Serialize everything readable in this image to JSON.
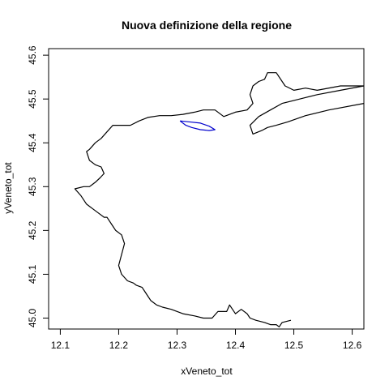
{
  "chart_data": {
    "type": "line",
    "title": "Nuova definizione della regione",
    "xlabel": "xVeneto_tot",
    "ylabel": "yVeneto_tot",
    "xlim": [
      12.08,
      12.62
    ],
    "ylim": [
      44.975,
      45.615
    ],
    "x_ticks": [
      "12.1",
      "12.2",
      "12.3",
      "12.4",
      "12.5",
      "12.6"
    ],
    "y_ticks": [
      "45.0",
      "45.1",
      "45.2",
      "45.3",
      "45.4",
      "45.5",
      "45.6"
    ],
    "grid": false,
    "series": [
      {
        "color": "#000000",
        "x": [
          12.62,
          12.58,
          12.54,
          12.52,
          12.5,
          12.485,
          12.47,
          12.455,
          12.45,
          12.44,
          12.43,
          12.425,
          12.43,
          12.42,
          12.4,
          12.38,
          12.365,
          12.345,
          12.33,
          12.31,
          12.29,
          12.27,
          12.25,
          12.235,
          12.22,
          12.21,
          12.2,
          12.19,
          12.18,
          12.17,
          12.16,
          12.15,
          12.145,
          12.15,
          12.16,
          12.17,
          12.175,
          12.168,
          12.16,
          12.155,
          12.15,
          12.14,
          12.125,
          12.135,
          12.145,
          12.15,
          12.155,
          12.165,
          12.175,
          12.18,
          12.19,
          12.195,
          12.205,
          12.21,
          12.2,
          12.205,
          12.215,
          12.225,
          12.23,
          12.24,
          12.245,
          12.25,
          12.255,
          12.26,
          12.265,
          12.275,
          12.29,
          12.31,
          12.33,
          12.345,
          12.36,
          12.37,
          12.385,
          12.39,
          12.395,
          12.4,
          12.41,
          12.42,
          12.425,
          12.435,
          12.45,
          12.46,
          12.47,
          12.475,
          12.48,
          12.495
        ],
        "y": [
          45.53,
          45.53,
          45.52,
          45.525,
          45.52,
          45.53,
          45.56,
          45.56,
          45.545,
          45.54,
          45.53,
          45.51,
          45.49,
          45.475,
          45.47,
          45.46,
          45.475,
          45.475,
          45.47,
          45.465,
          45.462,
          45.462,
          45.458,
          45.45,
          45.44,
          45.44,
          45.44,
          45.44,
          45.425,
          45.41,
          45.4,
          45.385,
          45.38,
          45.36,
          45.35,
          45.345,
          45.33,
          45.32,
          45.31,
          45.305,
          45.3,
          45.3,
          45.295,
          45.28,
          45.26,
          45.255,
          45.25,
          45.24,
          45.23,
          45.23,
          45.21,
          45.2,
          45.19,
          45.17,
          45.12,
          45.1,
          45.085,
          45.08,
          45.075,
          45.07,
          45.06,
          45.05,
          45.04,
          45.035,
          45.03,
          45.025,
          45.02,
          45.01,
          45.005,
          45.0,
          45.0,
          45.015,
          45.015,
          45.03,
          45.02,
          45.01,
          45.02,
          45.01,
          45.0,
          44.995,
          44.99,
          44.985,
          44.985,
          44.98,
          44.99,
          44.995
        ]
      },
      {
        "color": "#000000",
        "x": [
          12.62,
          12.56,
          12.52,
          12.49,
          12.47,
          12.455,
          12.445,
          12.43,
          12.425,
          12.44,
          12.46,
          12.48,
          12.51,
          12.54,
          12.58,
          12.62
        ],
        "y": [
          45.49,
          45.475,
          45.462,
          45.448,
          45.44,
          45.435,
          45.428,
          45.42,
          45.44,
          45.46,
          45.475,
          45.49,
          45.5,
          45.51,
          45.52,
          45.53
        ]
      },
      {
        "color": "#0000cc",
        "x": [
          12.305,
          12.32,
          12.34,
          12.355,
          12.365,
          12.355,
          12.34,
          12.325,
          12.315,
          12.305
        ],
        "y": [
          45.45,
          45.448,
          45.445,
          45.438,
          45.43,
          45.428,
          45.43,
          45.435,
          45.44,
          45.45
        ]
      }
    ]
  }
}
